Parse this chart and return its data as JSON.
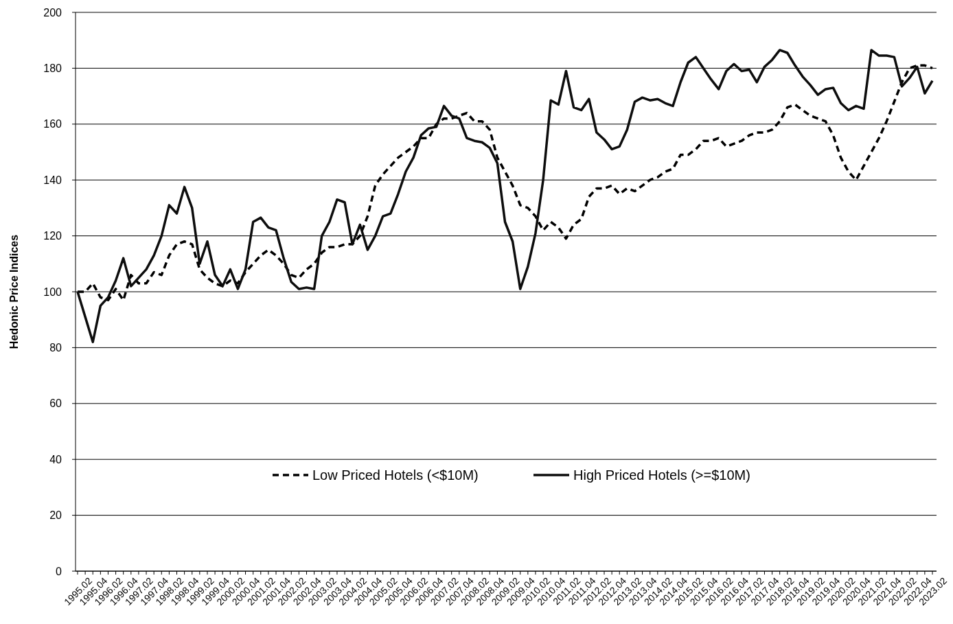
{
  "chart_data": {
    "type": "line",
    "ylabel": "Hedonic Price Indices",
    "ylim": [
      0,
      200
    ],
    "yticks": [
      0,
      20,
      40,
      60,
      80,
      100,
      120,
      140,
      160,
      180,
      200
    ],
    "grid": "y",
    "legend": "bottom",
    "marker": "none",
    "categories": [
      "1995.02",
      null,
      "1995.04",
      null,
      "1996.02",
      null,
      "1996.04",
      null,
      "1997.02",
      null,
      "1997.04",
      null,
      "1998.02",
      null,
      "1998.04",
      null,
      "1999.02",
      null,
      "1999.04",
      null,
      "2000.02",
      null,
      "2000.04",
      null,
      "2001.02",
      null,
      "2001.04",
      null,
      "2002.02",
      null,
      "2002.04",
      null,
      "2003.02",
      null,
      "2003.04",
      null,
      "2004.02",
      null,
      "2004.04",
      null,
      "2005.02",
      null,
      "2005.04",
      null,
      "2006.02",
      null,
      "2006.04",
      null,
      "2007.02",
      null,
      "2007.04",
      null,
      "2008.02",
      null,
      "2008.04",
      null,
      "2009.02",
      null,
      "2009.04",
      null,
      "2010.02",
      null,
      "2010.04",
      null,
      "2011.02",
      null,
      "2011.04",
      null,
      "2012.02",
      null,
      "2012.04",
      null,
      "2013.02",
      null,
      "2013.04",
      null,
      "2014.02",
      null,
      "2014.04",
      null,
      "2015.02",
      null,
      "2015.04",
      null,
      "2016.02",
      null,
      "2016.04",
      null,
      "2017.02",
      null,
      "2017.04",
      null,
      "2018.02",
      null,
      "2018.04",
      null,
      "2019.02",
      null,
      "2019.04",
      null,
      "2020.02",
      null,
      "2020.04",
      null,
      "2021.02",
      null,
      "2021.04",
      null,
      "2022.02",
      null,
      "2022.04",
      null,
      "2023.02"
    ],
    "series": [
      {
        "name": "Low Priced Hotels (<$10M)",
        "color": "#000000",
        "line_style": "dashed",
        "values": [
          100,
          100,
          103,
          98,
          97,
          101,
          97,
          106,
          103,
          103,
          107,
          106,
          113,
          117,
          118,
          117,
          108,
          105,
          103,
          102,
          104,
          103,
          107,
          110,
          113,
          115,
          113,
          110,
          106,
          105,
          108,
          110,
          114,
          116,
          116,
          117,
          117,
          120,
          127,
          138,
          142,
          145,
          148,
          150,
          152,
          155,
          155,
          160,
          162,
          162,
          163,
          164,
          161,
          161,
          158,
          148,
          143,
          138,
          131,
          130,
          127,
          122,
          125,
          123,
          119,
          124,
          126,
          134,
          137,
          137,
          138,
          135,
          137,
          136,
          138,
          140,
          141,
          143,
          144,
          149,
          149,
          151,
          154,
          154,
          155,
          152,
          153,
          154,
          156,
          157,
          157,
          158,
          161,
          166,
          167,
          165,
          163,
          162,
          161,
          156,
          148,
          143,
          140,
          145,
          150,
          155,
          161,
          168,
          175,
          180,
          181,
          181,
          180
        ]
      },
      {
        "name": "High Priced Hotels (>=$10M)",
        "color": "#0d0d0d",
        "line_style": "solid",
        "values": [
          100,
          91,
          82,
          95,
          98,
          104,
          112,
          102,
          105,
          108,
          113,
          120,
          131,
          128,
          137.5,
          130,
          110,
          118,
          106,
          102,
          108,
          101,
          108,
          125,
          126.5,
          123,
          122,
          112,
          103.5,
          101,
          101.5,
          101,
          120,
          125,
          133,
          132,
          117,
          124,
          115,
          120,
          127,
          128,
          135,
          143,
          148,
          156,
          158.5,
          159,
          166.5,
          163,
          162,
          155,
          154,
          153.5,
          151.5,
          146,
          125,
          118,
          101,
          109,
          121,
          140,
          168.5,
          167,
          179,
          166,
          165,
          169,
          157,
          154.5,
          151,
          152,
          158,
          168,
          169.5,
          168.5,
          169,
          167.5,
          166.5,
          175,
          182,
          184,
          180,
          176,
          172.5,
          179,
          181.5,
          179,
          179.5,
          175,
          180.5,
          183,
          186.5,
          185.5,
          181,
          177,
          174,
          170.5,
          172.5,
          173,
          167.5,
          165,
          166.5,
          165.5,
          186.5,
          184.5,
          184.5,
          184,
          173.5,
          176.5,
          180.5,
          171,
          175.5
        ]
      }
    ]
  }
}
